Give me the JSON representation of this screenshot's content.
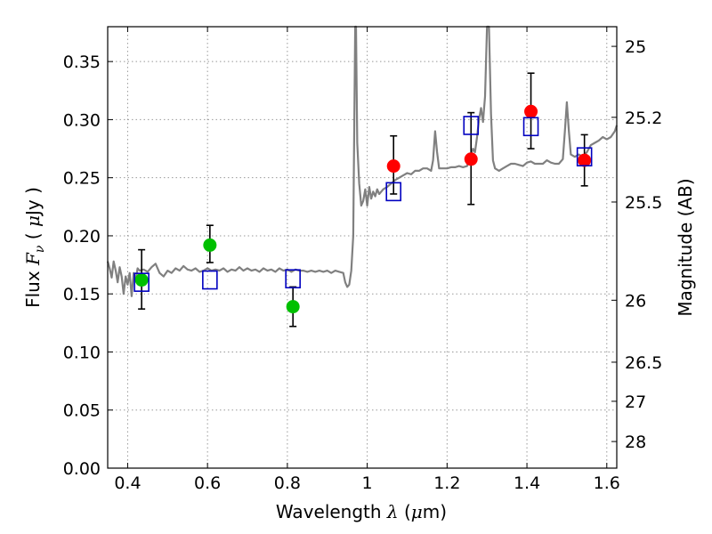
{
  "chart_data": {
    "type": "scatter",
    "xlabel": {
      "prefix": "Wavelength  ",
      "symbol": "λ",
      "unit_open": " (",
      "unit_mu": "μ",
      "unit_rest": "m)"
    },
    "ylabel": {
      "prefix": "Flux  ",
      "symbol": "F",
      "sub": "ν",
      "unit_open": "  ( ",
      "unit_mu": "μ",
      "unit_rest": "Jy )"
    },
    "y2label": "Magnitude (AB)",
    "xlim": [
      0.35,
      1.625
    ],
    "ylim": [
      0.0,
      0.38
    ],
    "grid": true,
    "x_ticks": [
      0.4,
      0.6,
      0.8,
      1.0,
      1.2,
      1.4,
      1.6
    ],
    "x_tick_labels": [
      "0.4",
      "0.6",
      "0.8",
      "1",
      "1.2",
      "1.4",
      "1.6"
    ],
    "y_ticks": [
      0.0,
      0.05,
      0.1,
      0.15,
      0.2,
      0.25,
      0.3,
      0.35
    ],
    "y_tick_labels": [
      "0.00",
      "0.05",
      "0.10",
      "0.15",
      "0.20",
      "0.25",
      "0.30",
      "0.35"
    ],
    "mag_ticks": [
      25,
      25.2,
      25.5,
      26,
      26.5,
      27,
      28
    ],
    "mag_tick_labels": [
      "25",
      "25.2",
      "25.5",
      "26",
      "26.5",
      "27",
      "28"
    ],
    "colors": {
      "spectrum": "#808080",
      "green": "#00c000",
      "red": "#ff0000",
      "model": "#0000c0",
      "error": "#000000",
      "grid": "#999999"
    },
    "series": [
      {
        "marker": "green-circle",
        "points": [
          {
            "x": 0.435,
            "y": 0.162,
            "lo": 0.137,
            "hi": 0.188
          },
          {
            "x": 0.606,
            "y": 0.192,
            "lo": 0.177,
            "hi": 0.209
          },
          {
            "x": 0.814,
            "y": 0.139,
            "lo": 0.122,
            "hi": 0.156
          }
        ]
      },
      {
        "marker": "red-circle",
        "points": [
          {
            "x": 1.066,
            "y": 0.26,
            "lo": 0.236,
            "hi": 0.286
          },
          {
            "x": 1.26,
            "y": 0.266,
            "lo": 0.227,
            "hi": 0.306
          },
          {
            "x": 1.41,
            "y": 0.307,
            "lo": 0.275,
            "hi": 0.34
          },
          {
            "x": 1.544,
            "y": 0.265,
            "lo": 0.243,
            "hi": 0.287
          }
        ]
      },
      {
        "marker": "blue-open-square",
        "points": [
          {
            "x": 0.435,
            "y": 0.16
          },
          {
            "x": 0.606,
            "y": 0.162
          },
          {
            "x": 0.814,
            "y": 0.163
          },
          {
            "x": 1.066,
            "y": 0.238
          },
          {
            "x": 1.26,
            "y": 0.295
          },
          {
            "x": 1.41,
            "y": 0.294
          },
          {
            "x": 1.544,
            "y": 0.268
          }
        ]
      }
    ],
    "spectrum": [
      [
        0.35,
        0.178
      ],
      [
        0.355,
        0.172
      ],
      [
        0.36,
        0.164
      ],
      [
        0.365,
        0.178
      ],
      [
        0.37,
        0.17
      ],
      [
        0.375,
        0.16
      ],
      [
        0.38,
        0.173
      ],
      [
        0.385,
        0.165
      ],
      [
        0.39,
        0.15
      ],
      [
        0.395,
        0.165
      ],
      [
        0.4,
        0.158
      ],
      [
        0.405,
        0.168
      ],
      [
        0.41,
        0.148
      ],
      [
        0.415,
        0.168
      ],
      [
        0.42,
        0.162
      ],
      [
        0.425,
        0.172
      ],
      [
        0.43,
        0.17
      ],
      [
        0.44,
        0.171
      ],
      [
        0.45,
        0.169
      ],
      [
        0.46,
        0.173
      ],
      [
        0.47,
        0.176
      ],
      [
        0.48,
        0.168
      ],
      [
        0.49,
        0.165
      ],
      [
        0.5,
        0.17
      ],
      [
        0.51,
        0.168
      ],
      [
        0.52,
        0.172
      ],
      [
        0.53,
        0.17
      ],
      [
        0.54,
        0.174
      ],
      [
        0.55,
        0.171
      ],
      [
        0.56,
        0.17
      ],
      [
        0.57,
        0.172
      ],
      [
        0.58,
        0.169
      ],
      [
        0.59,
        0.17
      ],
      [
        0.6,
        0.172
      ],
      [
        0.61,
        0.17
      ],
      [
        0.62,
        0.171
      ],
      [
        0.63,
        0.17
      ],
      [
        0.64,
        0.172
      ],
      [
        0.65,
        0.169
      ],
      [
        0.66,
        0.171
      ],
      [
        0.67,
        0.17
      ],
      [
        0.68,
        0.173
      ],
      [
        0.69,
        0.17
      ],
      [
        0.7,
        0.172
      ],
      [
        0.71,
        0.17
      ],
      [
        0.72,
        0.171
      ],
      [
        0.73,
        0.169
      ],
      [
        0.74,
        0.172
      ],
      [
        0.75,
        0.17
      ],
      [
        0.76,
        0.171
      ],
      [
        0.77,
        0.169
      ],
      [
        0.78,
        0.172
      ],
      [
        0.79,
        0.17
      ],
      [
        0.8,
        0.171
      ],
      [
        0.81,
        0.169
      ],
      [
        0.82,
        0.171
      ],
      [
        0.83,
        0.17
      ],
      [
        0.84,
        0.17
      ],
      [
        0.85,
        0.169
      ],
      [
        0.86,
        0.17
      ],
      [
        0.87,
        0.169
      ],
      [
        0.88,
        0.17
      ],
      [
        0.89,
        0.169
      ],
      [
        0.9,
        0.17
      ],
      [
        0.91,
        0.168
      ],
      [
        0.92,
        0.17
      ],
      [
        0.93,
        0.169
      ],
      [
        0.94,
        0.168
      ],
      [
        0.945,
        0.16
      ],
      [
        0.95,
        0.156
      ],
      [
        0.955,
        0.158
      ],
      [
        0.96,
        0.17
      ],
      [
        0.965,
        0.2
      ],
      [
        0.97,
        0.38
      ],
      [
        0.972,
        0.38
      ],
      [
        0.975,
        0.28
      ],
      [
        0.98,
        0.245
      ],
      [
        0.985,
        0.226
      ],
      [
        0.99,
        0.23
      ],
      [
        0.995,
        0.24
      ],
      [
        1.0,
        0.226
      ],
      [
        1.005,
        0.242
      ],
      [
        1.01,
        0.232
      ],
      [
        1.015,
        0.238
      ],
      [
        1.02,
        0.234
      ],
      [
        1.025,
        0.24
      ],
      [
        1.03,
        0.236
      ],
      [
        1.04,
        0.24
      ],
      [
        1.05,
        0.242
      ],
      [
        1.06,
        0.245
      ],
      [
        1.07,
        0.248
      ],
      [
        1.08,
        0.25
      ],
      [
        1.09,
        0.252
      ],
      [
        1.1,
        0.254
      ],
      [
        1.11,
        0.253
      ],
      [
        1.12,
        0.256
      ],
      [
        1.13,
        0.256
      ],
      [
        1.14,
        0.258
      ],
      [
        1.15,
        0.258
      ],
      [
        1.16,
        0.256
      ],
      [
        1.165,
        0.265
      ],
      [
        1.17,
        0.29
      ],
      [
        1.175,
        0.272
      ],
      [
        1.18,
        0.258
      ],
      [
        1.19,
        0.258
      ],
      [
        1.2,
        0.258
      ],
      [
        1.21,
        0.259
      ],
      [
        1.22,
        0.259
      ],
      [
        1.23,
        0.26
      ],
      [
        1.24,
        0.259
      ],
      [
        1.25,
        0.26
      ],
      [
        1.255,
        0.266
      ],
      [
        1.26,
        0.27
      ],
      [
        1.265,
        0.275
      ],
      [
        1.27,
        0.272
      ],
      [
        1.275,
        0.285
      ],
      [
        1.28,
        0.3
      ],
      [
        1.285,
        0.31
      ],
      [
        1.29,
        0.298
      ],
      [
        1.295,
        0.32
      ],
      [
        1.3,
        0.38
      ],
      [
        1.305,
        0.38
      ],
      [
        1.31,
        0.305
      ],
      [
        1.315,
        0.265
      ],
      [
        1.32,
        0.258
      ],
      [
        1.33,
        0.256
      ],
      [
        1.34,
        0.258
      ],
      [
        1.35,
        0.26
      ],
      [
        1.36,
        0.262
      ],
      [
        1.37,
        0.262
      ],
      [
        1.38,
        0.261
      ],
      [
        1.39,
        0.26
      ],
      [
        1.4,
        0.263
      ],
      [
        1.41,
        0.264
      ],
      [
        1.42,
        0.262
      ],
      [
        1.43,
        0.262
      ],
      [
        1.44,
        0.262
      ],
      [
        1.45,
        0.265
      ],
      [
        1.46,
        0.263
      ],
      [
        1.47,
        0.262
      ],
      [
        1.48,
        0.262
      ],
      [
        1.49,
        0.266
      ],
      [
        1.495,
        0.29
      ],
      [
        1.5,
        0.315
      ],
      [
        1.505,
        0.29
      ],
      [
        1.51,
        0.27
      ],
      [
        1.52,
        0.268
      ],
      [
        1.53,
        0.27
      ],
      [
        1.54,
        0.268
      ],
      [
        1.55,
        0.272
      ],
      [
        1.56,
        0.278
      ],
      [
        1.57,
        0.28
      ],
      [
        1.58,
        0.282
      ],
      [
        1.59,
        0.285
      ],
      [
        1.6,
        0.283
      ],
      [
        1.61,
        0.285
      ],
      [
        1.62,
        0.29
      ],
      [
        1.625,
        0.295
      ]
    ]
  }
}
